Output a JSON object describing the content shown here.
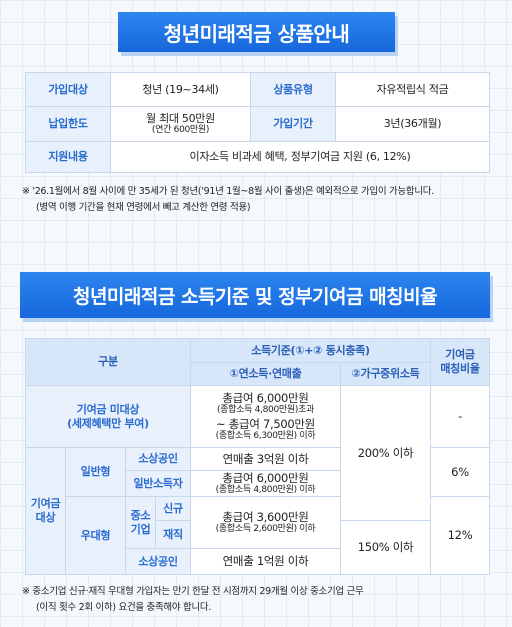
{
  "header": {
    "title": "청년미래적금 상품안내"
  },
  "product_table": {
    "rows": [
      [
        "가입대상",
        "청년 (19~34세)",
        "상품유형",
        "자유적립식 적금"
      ],
      [
        "납입한도",
        [
          "월 최대 50만원",
          "(연간 600만원)"
        ],
        "가입기간",
        "3년(36개월)"
      ],
      [
        "지원내용",
        "이자소득 비과세 혜택, 정부기여금 지원 (6, 12%)"
      ]
    ]
  },
  "product_notes": [
    "※ '26.1월에서 8월 사이에 만 35세가 된 청년('91년 1월~8월 사이 출생)은 예외적으로 가입이 가능합니다.",
    "(병역 이행 기간을 현재 연령에서 빼고 계산한 연령 적용)"
  ],
  "section_title": "청년미래적금 소득기준 및 정부기여금 매칭비율",
  "matching_table": {
    "header": {
      "category": "구분",
      "income_criteria": "소득기준(①+② 동시충족)",
      "annual_income": "①연소득·연매출",
      "household_income": "②가구중위소득",
      "matching_rate": [
        "기여금",
        "매칭비율"
      ]
    },
    "ineligible": {
      "label": [
        "기여금 미대상",
        "(세제혜택만 부여)"
      ],
      "annual_income": [
        "총급여 6,000만원",
        "(종합소득 4,800만원)초과",
        "~ 총급여 7,500만원",
        "(종합소득 6,300만원) 이하"
      ],
      "matching_rate": "-"
    },
    "eligible_label": [
      "기여금",
      "대상"
    ],
    "household_income_general": "200% 이하",
    "general": {
      "label": "일반형",
      "small_business": {
        "label": "소상공인",
        "annual_income": "연매출 3억원 이하"
      },
      "general_earner": {
        "label": "일반소득자",
        "annual_income": [
          "총급여 6,000만원",
          "(종합소득 4,800만원) 이하"
        ]
      },
      "matching_rate": "6%"
    },
    "preferred": {
      "label": "우대형",
      "sme_label": [
        "중소",
        "기업"
      ],
      "new": "신규",
      "employed": "재직",
      "sme_annual_income": [
        "총급여 3,600만원",
        "(종합소득 2,600만원) 이하"
      ],
      "small_business": {
        "label": "소상공인",
        "annual_income": "연매출 1억원 이하"
      },
      "household_income": "150% 이하",
      "matching_rate": "12%"
    }
  },
  "matching_notes": [
    "※ 중소기업 신규·재직 우대형 가입자는 만기 한달 전 시점까지 29개월 이상 중소기업 근무",
    "(이직 횟수 2회 이하) 요건을 충족해야 합니다."
  ]
}
